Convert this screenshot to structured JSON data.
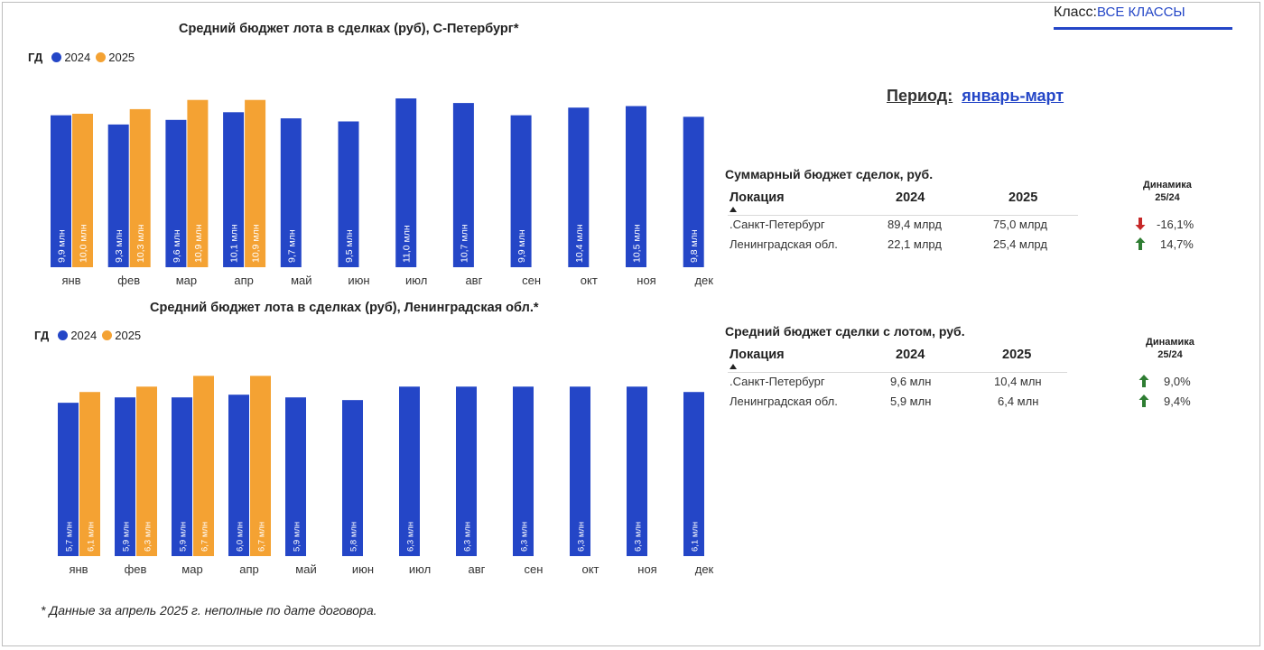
{
  "filters": {
    "class_label": "Класс:",
    "class_value": "ВСЕ КЛАССЫ",
    "period_label": "Период:",
    "period_value": "январь-март"
  },
  "colors": {
    "y2024": "#2446c7",
    "y2025": "#f4a233",
    "down": "#c62828",
    "up": "#2e7d32"
  },
  "charts": {
    "spb": {
      "title": "Средний бюджет  лота в сделках (руб), С-Петербург*",
      "legend_prefix": "ГД",
      "legend": [
        "2024",
        "2025"
      ]
    },
    "lo": {
      "title": "Средний бюджет  лота в сделках (руб), Ленинградская обл.*",
      "legend_prefix": "ГД",
      "legend": [
        "2024",
        "2025"
      ]
    }
  },
  "chart_data": [
    {
      "type": "bar",
      "title": "Средний бюджет  лота в сделках (руб), С-Петербург*",
      "categories": [
        "янв",
        "фев",
        "мар",
        "апр",
        "май",
        "июн",
        "июл",
        "авг",
        "сен",
        "окт",
        "ноя",
        "дек"
      ],
      "series": [
        {
          "name": "2024",
          "values": [
            9.9,
            9.3,
            9.6,
            10.1,
            9.7,
            9.5,
            11.0,
            10.7,
            9.9,
            10.4,
            10.5,
            9.8
          ],
          "labels": [
            "9,9 млн",
            "9,3 млн",
            "9,6 млн",
            "10,1 млн",
            "9,7 млн",
            "9,5 млн",
            "11,0 млн",
            "10,7 млн",
            "9,9 млн",
            "10,4 млн",
            "10,5 млн",
            "9,8 млн"
          ]
        },
        {
          "name": "2025",
          "values": [
            10.0,
            10.3,
            10.9,
            10.9,
            null,
            null,
            null,
            null,
            null,
            null,
            null,
            null
          ],
          "labels": [
            "10,0 млн",
            "10,3 млн",
            "10,9 млн",
            "10,9 млн",
            "",
            "",
            "",
            "",
            "",
            "",
            "",
            ""
          ]
        }
      ],
      "legend": "top-left",
      "grid": false
    },
    {
      "type": "bar",
      "title": "Средний бюджет  лота в сделках (руб), Ленинградская обл.*",
      "categories": [
        "янв",
        "фев",
        "мар",
        "апр",
        "май",
        "июн",
        "июл",
        "авг",
        "сен",
        "окт",
        "ноя",
        "дек"
      ],
      "series": [
        {
          "name": "2024",
          "values": [
            5.7,
            5.9,
            5.9,
            6.0,
            5.9,
            5.8,
            6.3,
            6.3,
            6.3,
            6.3,
            6.3,
            6.1
          ],
          "labels": [
            "5,7 млн",
            "5,9 млн",
            "5,9 млн",
            "6,0 млн",
            "5,9 млн",
            "5,8 млн",
            "6,3 млн",
            "6,3 млн",
            "6,3 млн",
            "6,3 млн",
            "6,3 млн",
            "6,1 млн"
          ]
        },
        {
          "name": "2025",
          "values": [
            6.1,
            6.3,
            6.7,
            6.7,
            null,
            null,
            null,
            null,
            null,
            null,
            null,
            null
          ],
          "labels": [
            "6,1 млн",
            "6,3 млн",
            "6,7 млн",
            "6,7 млн",
            "",
            "",
            "",
            "",
            "",
            "",
            "",
            ""
          ]
        }
      ],
      "legend": "top-left",
      "grid": false
    }
  ],
  "tables": {
    "total": {
      "title": "Суммарный бюджет сделок, руб.",
      "headers": {
        "location": "Локация",
        "y2024": "2024",
        "y2025": "2025",
        "dyn_line1": "Динамика",
        "dyn_line2": "25/24"
      },
      "rows": [
        {
          "location": ".Санкт-Петербург",
          "v2024": "89,4 млрд",
          "v2025": "75,0 млрд",
          "dyn": "-16,1%",
          "dir": "down"
        },
        {
          "location": "Ленинградская обл.",
          "v2024": "22,1 млрд",
          "v2025": "25,4 млрд",
          "dyn": "14,7%",
          "dir": "up"
        }
      ]
    },
    "avg": {
      "title": "Средний бюджет сделки с лотом, руб.",
      "headers": {
        "location": "Локация",
        "y2024": "2024",
        "y2025": "2025",
        "dyn_line1": "Динамика",
        "dyn_line2": "25/24"
      },
      "rows": [
        {
          "location": ".Санкт-Петербург",
          "v2024": "9,6 млн",
          "v2025": "10,4 млн",
          "dyn": "9,0%",
          "dir": "up"
        },
        {
          "location": "Ленинградская обл.",
          "v2024": "5,9 млн",
          "v2025": "6,4 млн",
          "dyn": "9,4%",
          "dir": "up"
        }
      ]
    }
  },
  "footnote": "* Данные за апрель 2025 г. неполные по дате договора."
}
